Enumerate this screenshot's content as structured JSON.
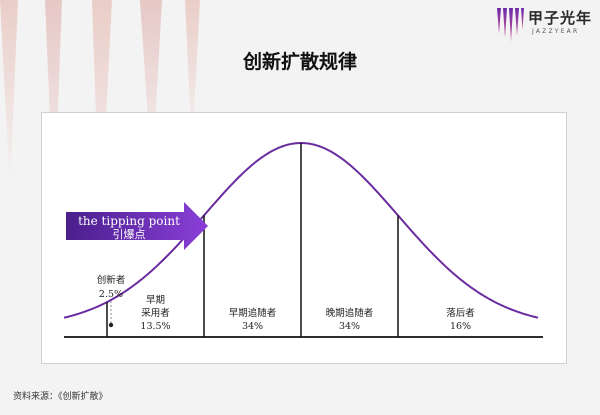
{
  "header": {
    "title": "创新扩散规律",
    "logo_text": "甲子光年",
    "logo_sub": "JAZZYEAR"
  },
  "source": "资料来源：《创新扩散》",
  "chart_data": {
    "type": "area",
    "title": "创新扩散规律",
    "distribution": "normal",
    "segments": [
      {
        "name": "创新者",
        "percent": "2.5%"
      },
      {
        "name_lines": [
          "早期",
          "采用者"
        ],
        "percent": "13.5%"
      },
      {
        "name": "早期追随者",
        "percent": "34%"
      },
      {
        "name": "晚期追随者",
        "percent": "34%"
      },
      {
        "name": "落后者",
        "percent": "16%"
      }
    ],
    "boundaries_sd": [
      -2,
      -1,
      0,
      1
    ],
    "annotation": {
      "text_en": "the tipping point",
      "text_zh": "引爆点",
      "at_sd": -1
    },
    "colors": {
      "curve": "#6a2ca0",
      "arrow_start": "#4a1f8c",
      "arrow_end": "#8a3fd8",
      "lines": "#111111"
    }
  }
}
